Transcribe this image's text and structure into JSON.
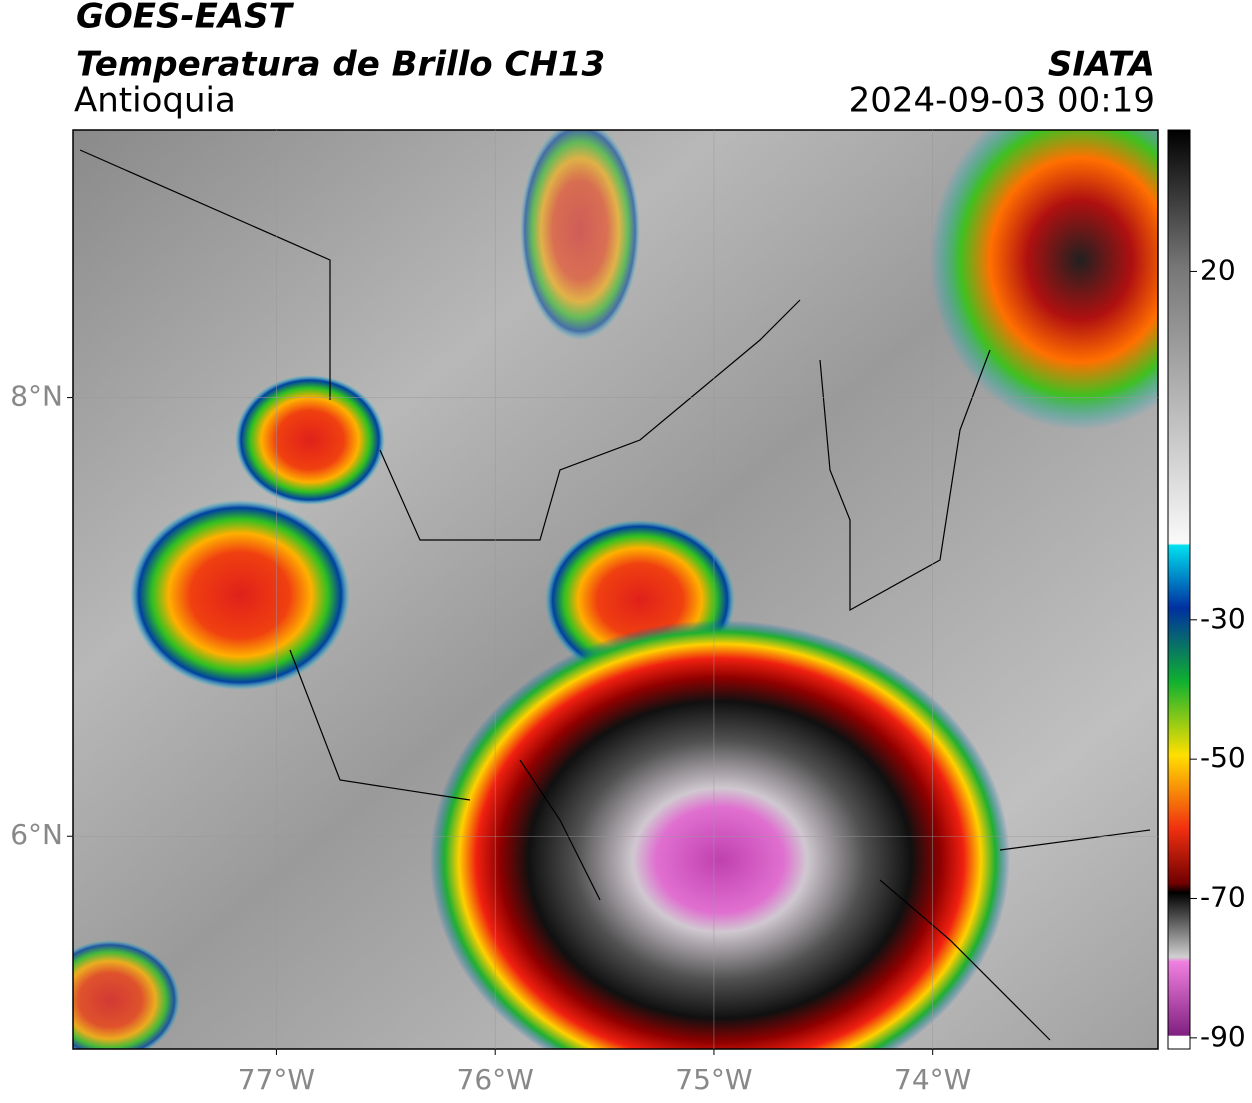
{
  "header": {
    "satellite": "GOES-EAST",
    "product": "Temperatura de Brillo CH13",
    "region": "Antioquia",
    "source": "SIATA",
    "datetime": "2024-09-03 00:19"
  },
  "map": {
    "lonlim": [
      -77.93,
      -72.97
    ],
    "latlim": [
      5.03,
      9.22
    ],
    "lonticks": [
      {
        "value": -77,
        "label": "77°W"
      },
      {
        "value": -76,
        "label": "76°W"
      },
      {
        "value": -75,
        "label": "75°W"
      },
      {
        "value": -74,
        "label": "74°W"
      }
    ],
    "latticks": [
      {
        "value": 8,
        "label": "8°N"
      },
      {
        "value": 6,
        "label": "6°N"
      }
    ],
    "grid": true
  },
  "colorbar": {
    "lim": [
      -91.6,
      40.3
    ],
    "ticks": [
      20,
      -30,
      -50,
      -70,
      -90
    ]
  }
}
